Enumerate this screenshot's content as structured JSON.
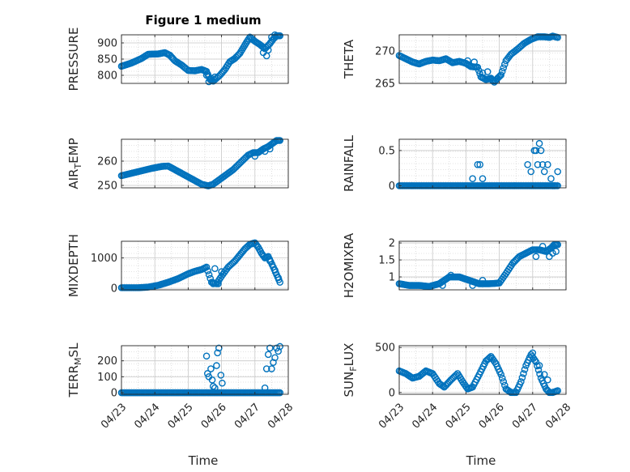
{
  "figure_title": "Figure 1 medium",
  "colors": {
    "marker": "#0072BD",
    "axis": "#262626",
    "grid": "#c8c8c8"
  },
  "chart_data": [
    {
      "type": "scatter",
      "ylabel": "PRESSURE",
      "ylim": [
        775,
        925
      ],
      "yticks": [
        800,
        850,
        900
      ],
      "ytick_labels": [
        "800",
        "850",
        "900"
      ],
      "xlim": [
        "04/23",
        "04/28"
      ],
      "grid": true,
      "curve": [
        [
          0.0,
          828
        ],
        [
          0.3,
          838
        ],
        [
          0.6,
          852
        ],
        [
          0.8,
          865
        ],
        [
          1.1,
          866
        ],
        [
          1.3,
          870
        ],
        [
          1.45,
          862
        ],
        [
          1.6,
          845
        ],
        [
          1.8,
          832
        ],
        [
          2.0,
          815
        ],
        [
          2.2,
          814
        ],
        [
          2.4,
          818
        ],
        [
          2.55,
          812
        ],
        [
          2.65,
          788
        ],
        [
          2.75,
          782
        ],
        [
          2.95,
          800
        ],
        [
          3.1,
          818
        ],
        [
          3.25,
          842
        ],
        [
          3.4,
          852
        ],
        [
          3.55,
          868
        ],
        [
          3.65,
          885
        ],
        [
          3.75,
          902
        ],
        [
          3.85,
          918
        ],
        [
          4.0,
          905
        ],
        [
          4.15,
          895
        ],
        [
          4.3,
          882
        ],
        [
          4.45,
          898
        ],
        [
          4.55,
          912
        ],
        [
          4.65,
          922
        ],
        [
          4.75,
          922
        ]
      ],
      "scatter": [
        [
          2.55,
          800
        ],
        [
          2.62,
          780
        ],
        [
          2.7,
          790
        ],
        [
          2.8,
          795
        ],
        [
          4.25,
          870
        ],
        [
          4.35,
          860
        ],
        [
          4.4,
          878
        ],
        [
          4.5,
          918
        ],
        [
          4.6,
          925
        ]
      ]
    },
    {
      "type": "scatter",
      "ylabel": "THETA",
      "ylim": [
        265,
        272.5
      ],
      "yticks": [
        265,
        270
      ],
      "ytick_labels": [
        "265",
        "270"
      ],
      "xlim": [
        "04/23",
        "04/28"
      ],
      "grid": true,
      "curve": [
        [
          0.0,
          269.3
        ],
        [
          0.2,
          268.8
        ],
        [
          0.4,
          268.3
        ],
        [
          0.6,
          268.0
        ],
        [
          0.8,
          268.4
        ],
        [
          1.0,
          268.6
        ],
        [
          1.2,
          268.5
        ],
        [
          1.4,
          268.8
        ],
        [
          1.6,
          268.2
        ],
        [
          1.8,
          268.4
        ],
        [
          2.0,
          268.1
        ],
        [
          2.15,
          267.6
        ],
        [
          2.35,
          267.5
        ],
        [
          2.45,
          266.0
        ],
        [
          2.6,
          265.6
        ],
        [
          2.75,
          265.8
        ],
        [
          2.85,
          265.2
        ],
        [
          2.95,
          265.8
        ],
        [
          3.05,
          266.3
        ],
        [
          3.2,
          268.5
        ],
        [
          3.35,
          269.5
        ],
        [
          3.55,
          270.3
        ],
        [
          3.75,
          271.2
        ],
        [
          3.95,
          271.8
        ],
        [
          4.15,
          272.2
        ],
        [
          4.35,
          272.2
        ],
        [
          4.5,
          272.1
        ],
        [
          4.6,
          272.3
        ],
        [
          4.75,
          272.1
        ]
      ],
      "scatter": [
        [
          2.05,
          268.5
        ],
        [
          2.25,
          268.3
        ],
        [
          2.5,
          266.6
        ],
        [
          2.65,
          266.8
        ],
        [
          2.8,
          265.4
        ]
      ]
    },
    {
      "type": "scatter",
      "ylabel": "AIR_TEMP",
      "ylabel_main": "AIR",
      "ylabel_sub": "T",
      "ylabel_rest": "EMP",
      "ylim": [
        249,
        269
      ],
      "yticks": [
        250,
        260
      ],
      "ytick_labels": [
        "250",
        "260"
      ],
      "xlim": [
        "04/23",
        "04/28"
      ],
      "grid": true,
      "curve": [
        [
          0.0,
          254
        ],
        [
          0.3,
          255
        ],
        [
          0.6,
          256
        ],
        [
          0.9,
          257
        ],
        [
          1.2,
          257.8
        ],
        [
          1.4,
          258
        ],
        [
          1.6,
          256.5
        ],
        [
          1.8,
          255
        ],
        [
          2.0,
          253.5
        ],
        [
          2.2,
          252
        ],
        [
          2.4,
          250.5
        ],
        [
          2.6,
          249.8
        ],
        [
          2.75,
          250.5
        ],
        [
          2.95,
          252.5
        ],
        [
          3.15,
          254.5
        ],
        [
          3.35,
          256.5
        ],
        [
          3.5,
          258.5
        ],
        [
          3.65,
          260.5
        ],
        [
          3.8,
          262.5
        ],
        [
          3.95,
          263.5
        ],
        [
          4.1,
          263.5
        ],
        [
          4.25,
          265
        ],
        [
          4.4,
          266
        ],
        [
          4.55,
          267.5
        ],
        [
          4.65,
          268.5
        ],
        [
          4.75,
          268.5
        ]
      ],
      "scatter": [
        [
          4.0,
          262
        ],
        [
          4.3,
          264
        ],
        [
          4.45,
          265
        ]
      ]
    },
    {
      "type": "scatter",
      "ylabel": "RAINFALL",
      "ylim": [
        -0.03,
        0.66
      ],
      "yticks": [
        0,
        0.5
      ],
      "ytick_labels": [
        "0",
        "0.5"
      ],
      "xlim": [
        "04/23",
        "04/28"
      ],
      "grid": true,
      "curve": [
        [
          0.0,
          0
        ],
        [
          2.3,
          0
        ],
        [
          2.45,
          0
        ],
        [
          4.75,
          0
        ]
      ],
      "scatter": [
        [
          2.2,
          0.1
        ],
        [
          2.35,
          0.3
        ],
        [
          2.42,
          0.3
        ],
        [
          2.5,
          0.1
        ],
        [
          3.85,
          0.3
        ],
        [
          3.95,
          0.2
        ],
        [
          4.05,
          0.5
        ],
        [
          4.1,
          0.5
        ],
        [
          4.15,
          0.3
        ],
        [
          4.2,
          0.6
        ],
        [
          4.25,
          0.5
        ],
        [
          4.3,
          0.3
        ],
        [
          4.35,
          0.2
        ],
        [
          4.45,
          0.3
        ],
        [
          4.55,
          0.1
        ],
        [
          4.6,
          0
        ],
        [
          4.65,
          0
        ],
        [
          4.75,
          0.2
        ]
      ]
    },
    {
      "type": "scatter",
      "ylabel": "MIXDEPTH",
      "ylim": [
        -50,
        1550
      ],
      "yticks": [
        0,
        1000
      ],
      "ytick_labels": [
        "0",
        "1000"
      ],
      "xlim": [
        "04/23",
        "04/28"
      ],
      "grid": true,
      "curve": [
        [
          0.0,
          20
        ],
        [
          0.5,
          20
        ],
        [
          0.8,
          40
        ],
        [
          1.1,
          100
        ],
        [
          1.4,
          200
        ],
        [
          1.7,
          320
        ],
        [
          2.0,
          480
        ],
        [
          2.2,
          560
        ],
        [
          2.4,
          620
        ],
        [
          2.55,
          700
        ],
        [
          2.7,
          200
        ],
        [
          2.85,
          150
        ],
        [
          3.0,
          400
        ],
        [
          3.2,
          700
        ],
        [
          3.4,
          900
        ],
        [
          3.55,
          1100
        ],
        [
          3.7,
          1300
        ],
        [
          3.85,
          1450
        ],
        [
          4.0,
          1500
        ],
        [
          4.1,
          1350
        ],
        [
          4.2,
          1150
        ],
        [
          4.3,
          1000
        ],
        [
          4.4,
          1050
        ],
        [
          4.55,
          700
        ],
        [
          4.65,
          450
        ],
        [
          4.75,
          200
        ]
      ],
      "scatter": [
        [
          2.75,
          150
        ],
        [
          2.8,
          650
        ],
        [
          2.9,
          150
        ],
        [
          3.0,
          550
        ],
        [
          4.45,
          900
        ],
        [
          4.6,
          600
        ],
        [
          4.7,
          350
        ]
      ]
    },
    {
      "type": "scatter",
      "ylabel": "H2OMIXRA",
      "ylim": [
        0.62,
        2.05
      ],
      "yticks": [
        1,
        1.5,
        2
      ],
      "ytick_labels": [
        "1",
        "1.5",
        "2"
      ],
      "xlim": [
        "04/23",
        "04/28"
      ],
      "grid": true,
      "curve": [
        [
          0.0,
          0.8
        ],
        [
          0.3,
          0.75
        ],
        [
          0.6,
          0.75
        ],
        [
          0.9,
          0.72
        ],
        [
          1.2,
          0.8
        ],
        [
          1.35,
          0.9
        ],
        [
          1.5,
          1.0
        ],
        [
          1.8,
          1.0
        ],
        [
          2.1,
          0.9
        ],
        [
          2.4,
          0.8
        ],
        [
          2.7,
          0.8
        ],
        [
          3.0,
          0.82
        ],
        [
          3.2,
          1.1
        ],
        [
          3.4,
          1.4
        ],
        [
          3.6,
          1.6
        ],
        [
          3.8,
          1.7
        ],
        [
          4.0,
          1.8
        ],
        [
          4.2,
          1.8
        ],
        [
          4.4,
          1.75
        ],
        [
          4.55,
          1.85
        ],
        [
          4.65,
          1.95
        ],
        [
          4.75,
          1.95
        ]
      ],
      "scatter": [
        [
          1.3,
          0.75
        ],
        [
          1.55,
          1.05
        ],
        [
          2.2,
          0.75
        ],
        [
          2.5,
          0.9
        ],
        [
          4.1,
          1.6
        ],
        [
          4.3,
          1.9
        ],
        [
          4.5,
          1.6
        ],
        [
          4.6,
          1.7
        ],
        [
          4.7,
          1.75
        ]
      ]
    },
    {
      "type": "scatter",
      "ylabel": "TERR_MSL",
      "ylabel_main": "TERR",
      "ylabel_sub": "M",
      "ylabel_rest": "SL",
      "ylim": [
        -10,
        295
      ],
      "yticks": [
        0,
        100,
        200
      ],
      "ytick_labels": [
        "0",
        "100",
        "200"
      ],
      "xlim": [
        "04/23",
        "04/28"
      ],
      "grid": true,
      "curve": [
        [
          0.0,
          0
        ],
        [
          2.5,
          0
        ],
        [
          3.5,
          0
        ],
        [
          4.75,
          0
        ]
      ],
      "scatter": [
        [
          2.55,
          230
        ],
        [
          2.58,
          120
        ],
        [
          2.62,
          100
        ],
        [
          2.68,
          150
        ],
        [
          2.72,
          80
        ],
        [
          2.75,
          40
        ],
        [
          2.8,
          30
        ],
        [
          2.85,
          170
        ],
        [
          2.88,
          250
        ],
        [
          2.92,
          280
        ],
        [
          2.98,
          110
        ],
        [
          3.02,
          60
        ],
        [
          4.3,
          30
        ],
        [
          4.35,
          150
        ],
        [
          4.4,
          240
        ],
        [
          4.45,
          280
        ],
        [
          4.5,
          150
        ],
        [
          4.55,
          190
        ],
        [
          4.6,
          220
        ],
        [
          4.65,
          280
        ],
        [
          4.7,
          260
        ],
        [
          4.75,
          290
        ]
      ]
    },
    {
      "type": "scatter",
      "ylabel": "SUN_FLUX",
      "ylabel_main": "SUN",
      "ylabel_sub": "F",
      "ylabel_rest": "LUX",
      "ylim": [
        -20,
        520
      ],
      "yticks": [
        0,
        500
      ],
      "ytick_labels": [
        "0",
        "500"
      ],
      "xlim": [
        "04/23",
        "04/28"
      ],
      "grid": true,
      "curve": [
        [
          0.0,
          240
        ],
        [
          0.2,
          210
        ],
        [
          0.4,
          160
        ],
        [
          0.6,
          180
        ],
        [
          0.8,
          240
        ],
        [
          1.0,
          210
        ],
        [
          1.2,
          100
        ],
        [
          1.35,
          60
        ],
        [
          1.55,
          140
        ],
        [
          1.75,
          210
        ],
        [
          1.9,
          120
        ],
        [
          2.05,
          40
        ],
        [
          2.2,
          60
        ],
        [
          2.4,
          200
        ],
        [
          2.6,
          350
        ],
        [
          2.75,
          400
        ],
        [
          2.9,
          320
        ],
        [
          3.05,
          200
        ],
        [
          3.2,
          40
        ],
        [
          3.35,
          0
        ],
        [
          3.5,
          0
        ],
        [
          3.65,
          120
        ],
        [
          3.8,
          300
        ],
        [
          3.95,
          420
        ],
        [
          4.1,
          340
        ],
        [
          4.25,
          160
        ],
        [
          4.4,
          40
        ],
        [
          4.5,
          0
        ],
        [
          4.6,
          0
        ],
        [
          4.75,
          20
        ]
      ],
      "scatter": [
        [
          4.0,
          440
        ],
        [
          4.2,
          300
        ],
        [
          4.35,
          200
        ],
        [
          4.45,
          140
        ]
      ]
    }
  ],
  "x_tick_labels": [
    "04/23",
    "04/24",
    "04/25",
    "04/26",
    "04/27",
    "04/28"
  ],
  "x_label": "Time",
  "left_xlabel": "Time",
  "right_xlabel": "Time"
}
